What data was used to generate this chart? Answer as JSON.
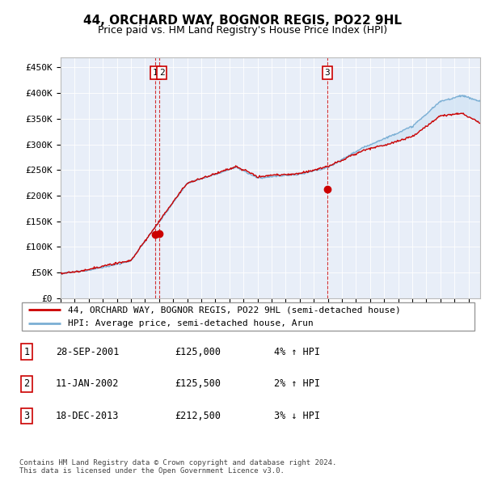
{
  "title": "44, ORCHARD WAY, BOGNOR REGIS, PO22 9HL",
  "subtitle": "Price paid vs. HM Land Registry's House Price Index (HPI)",
  "ylabel_ticks": [
    "£0",
    "£50K",
    "£100K",
    "£150K",
    "£200K",
    "£250K",
    "£300K",
    "£350K",
    "£400K",
    "£450K"
  ],
  "ytick_values": [
    0,
    50000,
    100000,
    150000,
    200000,
    250000,
    300000,
    350000,
    400000,
    450000
  ],
  "ylim": [
    0,
    470000
  ],
  "xlim_start": 1995.0,
  "xlim_end": 2024.83,
  "plot_bg_color": "#e8eef8",
  "grid_color": "#ffffff",
  "red_line_color": "#cc0000",
  "blue_line_color": "#7bafd4",
  "fill_color": "#d0e4f5",
  "transaction_dates": [
    2001.747,
    2002.036,
    2013.962
  ],
  "transaction_prices": [
    125000,
    125500,
    212500
  ],
  "transaction_labels": [
    "1",
    "2",
    "3"
  ],
  "legend_label_red": "44, ORCHARD WAY, BOGNOR REGIS, PO22 9HL (semi-detached house)",
  "legend_label_blue": "HPI: Average price, semi-detached house, Arun",
  "table_rows": [
    [
      "1",
      "28-SEP-2001",
      "£125,000",
      "4% ↑ HPI"
    ],
    [
      "2",
      "11-JAN-2002",
      "£125,500",
      "2% ↑ HPI"
    ],
    [
      "3",
      "18-DEC-2013",
      "£212,500",
      "3% ↓ HPI"
    ]
  ],
  "footer_text": "Contains HM Land Registry data © Crown copyright and database right 2024.\nThis data is licensed under the Open Government Licence v3.0.",
  "title_fontsize": 11,
  "subtitle_fontsize": 9,
  "tick_fontsize": 8,
  "legend_fontsize": 8,
  "table_fontsize": 8.5
}
